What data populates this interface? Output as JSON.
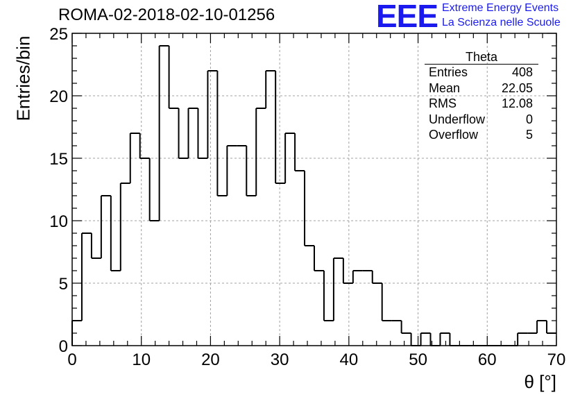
{
  "header": {
    "run_title": "ROMA-02-2018-02-10-01256",
    "logo_mark": "EEE",
    "logo_line1": "Extreme Energy Events",
    "logo_line2": "La Scienza nelle Scuole"
  },
  "stats_box": {
    "title": "Theta",
    "rows": [
      {
        "label": "Entries",
        "value": "408"
      },
      {
        "label": "Mean",
        "value": "22.05"
      },
      {
        "label": "RMS",
        "value": "12.08"
      },
      {
        "label": "Underflow",
        "value": "0"
      },
      {
        "label": "Overflow",
        "value": "5"
      }
    ]
  },
  "chart_data": {
    "type": "bar",
    "histogram": true,
    "xlabel": "θ [°]",
    "ylabel": "Entries/bin",
    "xlim": [
      0,
      70
    ],
    "ylim": [
      0,
      25
    ],
    "grid": true,
    "bin_width": 1.4,
    "x_ticks": [
      0,
      10,
      20,
      30,
      40,
      50,
      60,
      70
    ],
    "y_ticks": [
      0,
      5,
      10,
      15,
      20,
      25
    ],
    "tick_labels_x": [
      "0",
      "10",
      "20",
      "30",
      "40",
      "50",
      "60",
      "70"
    ],
    "tick_labels_y": [
      "0",
      "5",
      "10",
      "15",
      "20",
      "25"
    ],
    "values": [
      2,
      9,
      7,
      12,
      6,
      13,
      17,
      15,
      10,
      24,
      19,
      15,
      19,
      15,
      22,
      12,
      16,
      16,
      12,
      19,
      22,
      13,
      17,
      14,
      8,
      6,
      2,
      7,
      5,
      6,
      6,
      5,
      2,
      2,
      1,
      0,
      1,
      0,
      1,
      0,
      0,
      0,
      0,
      0,
      0,
      0,
      1,
      1,
      2,
      1
    ],
    "line_color": "#000000",
    "grid_color": "#a0a0a0"
  }
}
